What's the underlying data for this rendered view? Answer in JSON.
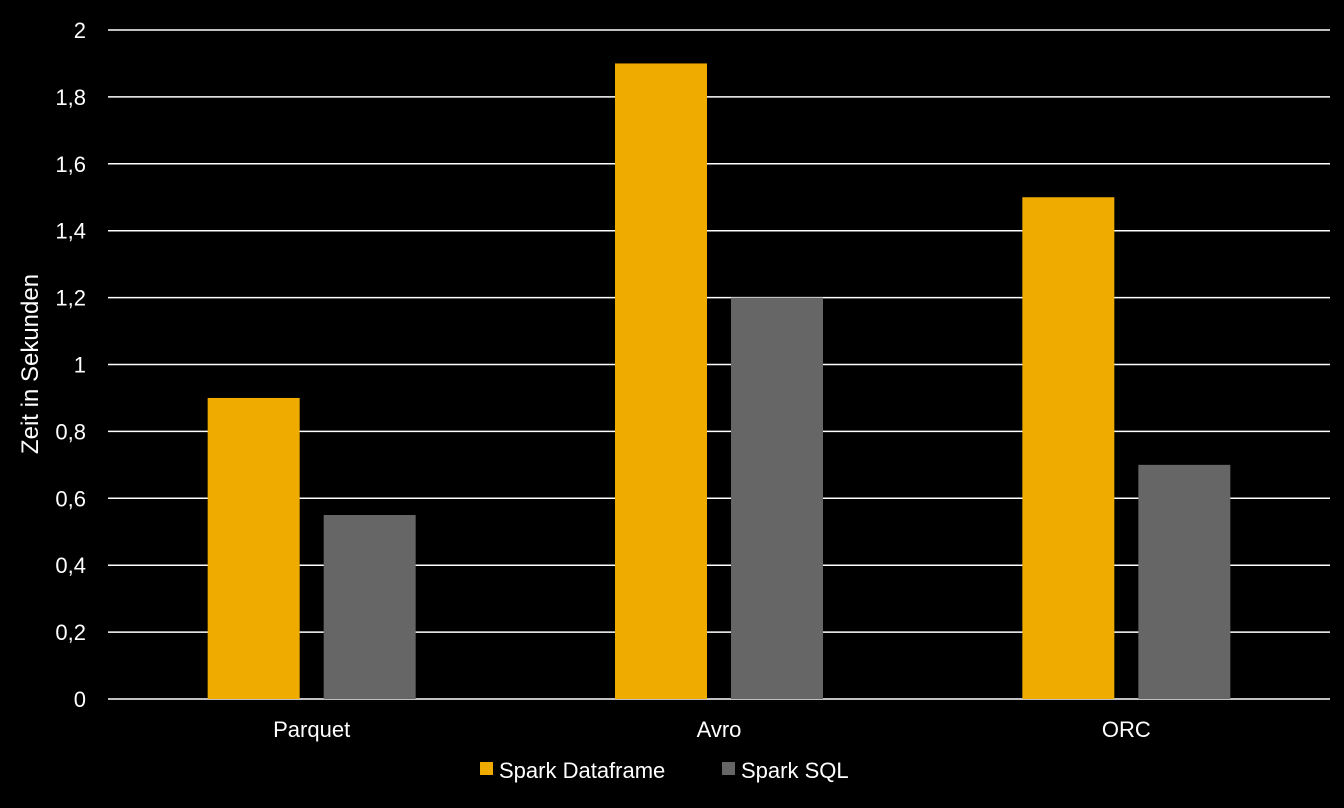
{
  "chart_data": {
    "type": "bar",
    "title": "",
    "xlabel": "",
    "ylabel": "Zeit in Sekunden",
    "categories": [
      "Parquet",
      "Avro",
      "ORC"
    ],
    "series": [
      {
        "name": "Spark Dataframe",
        "values": [
          0.9,
          1.9,
          1.5
        ],
        "color": "#F0AB00"
      },
      {
        "name": "Spark SQL",
        "values": [
          0.55,
          1.2,
          0.7
        ],
        "color": "#666666"
      }
    ],
    "ylim": [
      0,
      2
    ],
    "yticks": [
      0,
      0.2,
      0.4,
      0.6,
      0.8,
      1,
      1.2,
      1.4,
      1.6,
      1.8,
      2
    ],
    "ytick_labels": [
      "0",
      "0,2",
      "0,4",
      "0,6",
      "0,8",
      "1",
      "1,2",
      "1,4",
      "1,6",
      "1,8",
      "2"
    ],
    "grid": true,
    "legend": "bottom-center",
    "background": "#000000",
    "gridline_color": "#FFFFFF",
    "text_color": "#FFFFFF"
  }
}
